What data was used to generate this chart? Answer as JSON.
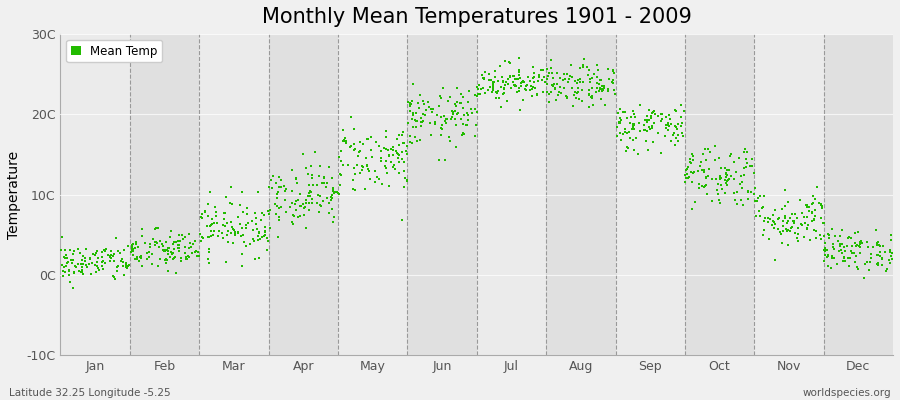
{
  "title": "Monthly Mean Temperatures 1901 - 2009",
  "ylabel": "Temperature",
  "ylim": [
    -10,
    30
  ],
  "yticks": [
    -10,
    0,
    10,
    20,
    30
  ],
  "ytick_labels": [
    "-10C",
    "0C",
    "10C",
    "20C",
    "30C"
  ],
  "months": [
    "Jan",
    "Feb",
    "Mar",
    "Apr",
    "May",
    "Jun",
    "Jul",
    "Aug",
    "Sep",
    "Oct",
    "Nov",
    "Dec"
  ],
  "month_means": [
    1.5,
    3.0,
    6.0,
    10.0,
    14.5,
    19.5,
    24.0,
    23.5,
    18.5,
    12.5,
    7.0,
    3.0
  ],
  "month_stds": [
    1.2,
    1.3,
    1.8,
    2.0,
    2.2,
    1.8,
    1.2,
    1.3,
    1.5,
    2.0,
    1.8,
    1.3
  ],
  "n_years": 109,
  "dot_color": "#22bb00",
  "dot_size": 3,
  "bg_color": "#f0f0f0",
  "plot_bg_color": "#ebebeb",
  "alt_bg_color": "#e0e0e0",
  "grid_color": "#999999",
  "title_fontsize": 15,
  "legend_label": "Mean Temp",
  "bottom_left": "Latitude 32.25 Longitude -5.25",
  "bottom_right": "worldspecies.org",
  "seed": 42
}
